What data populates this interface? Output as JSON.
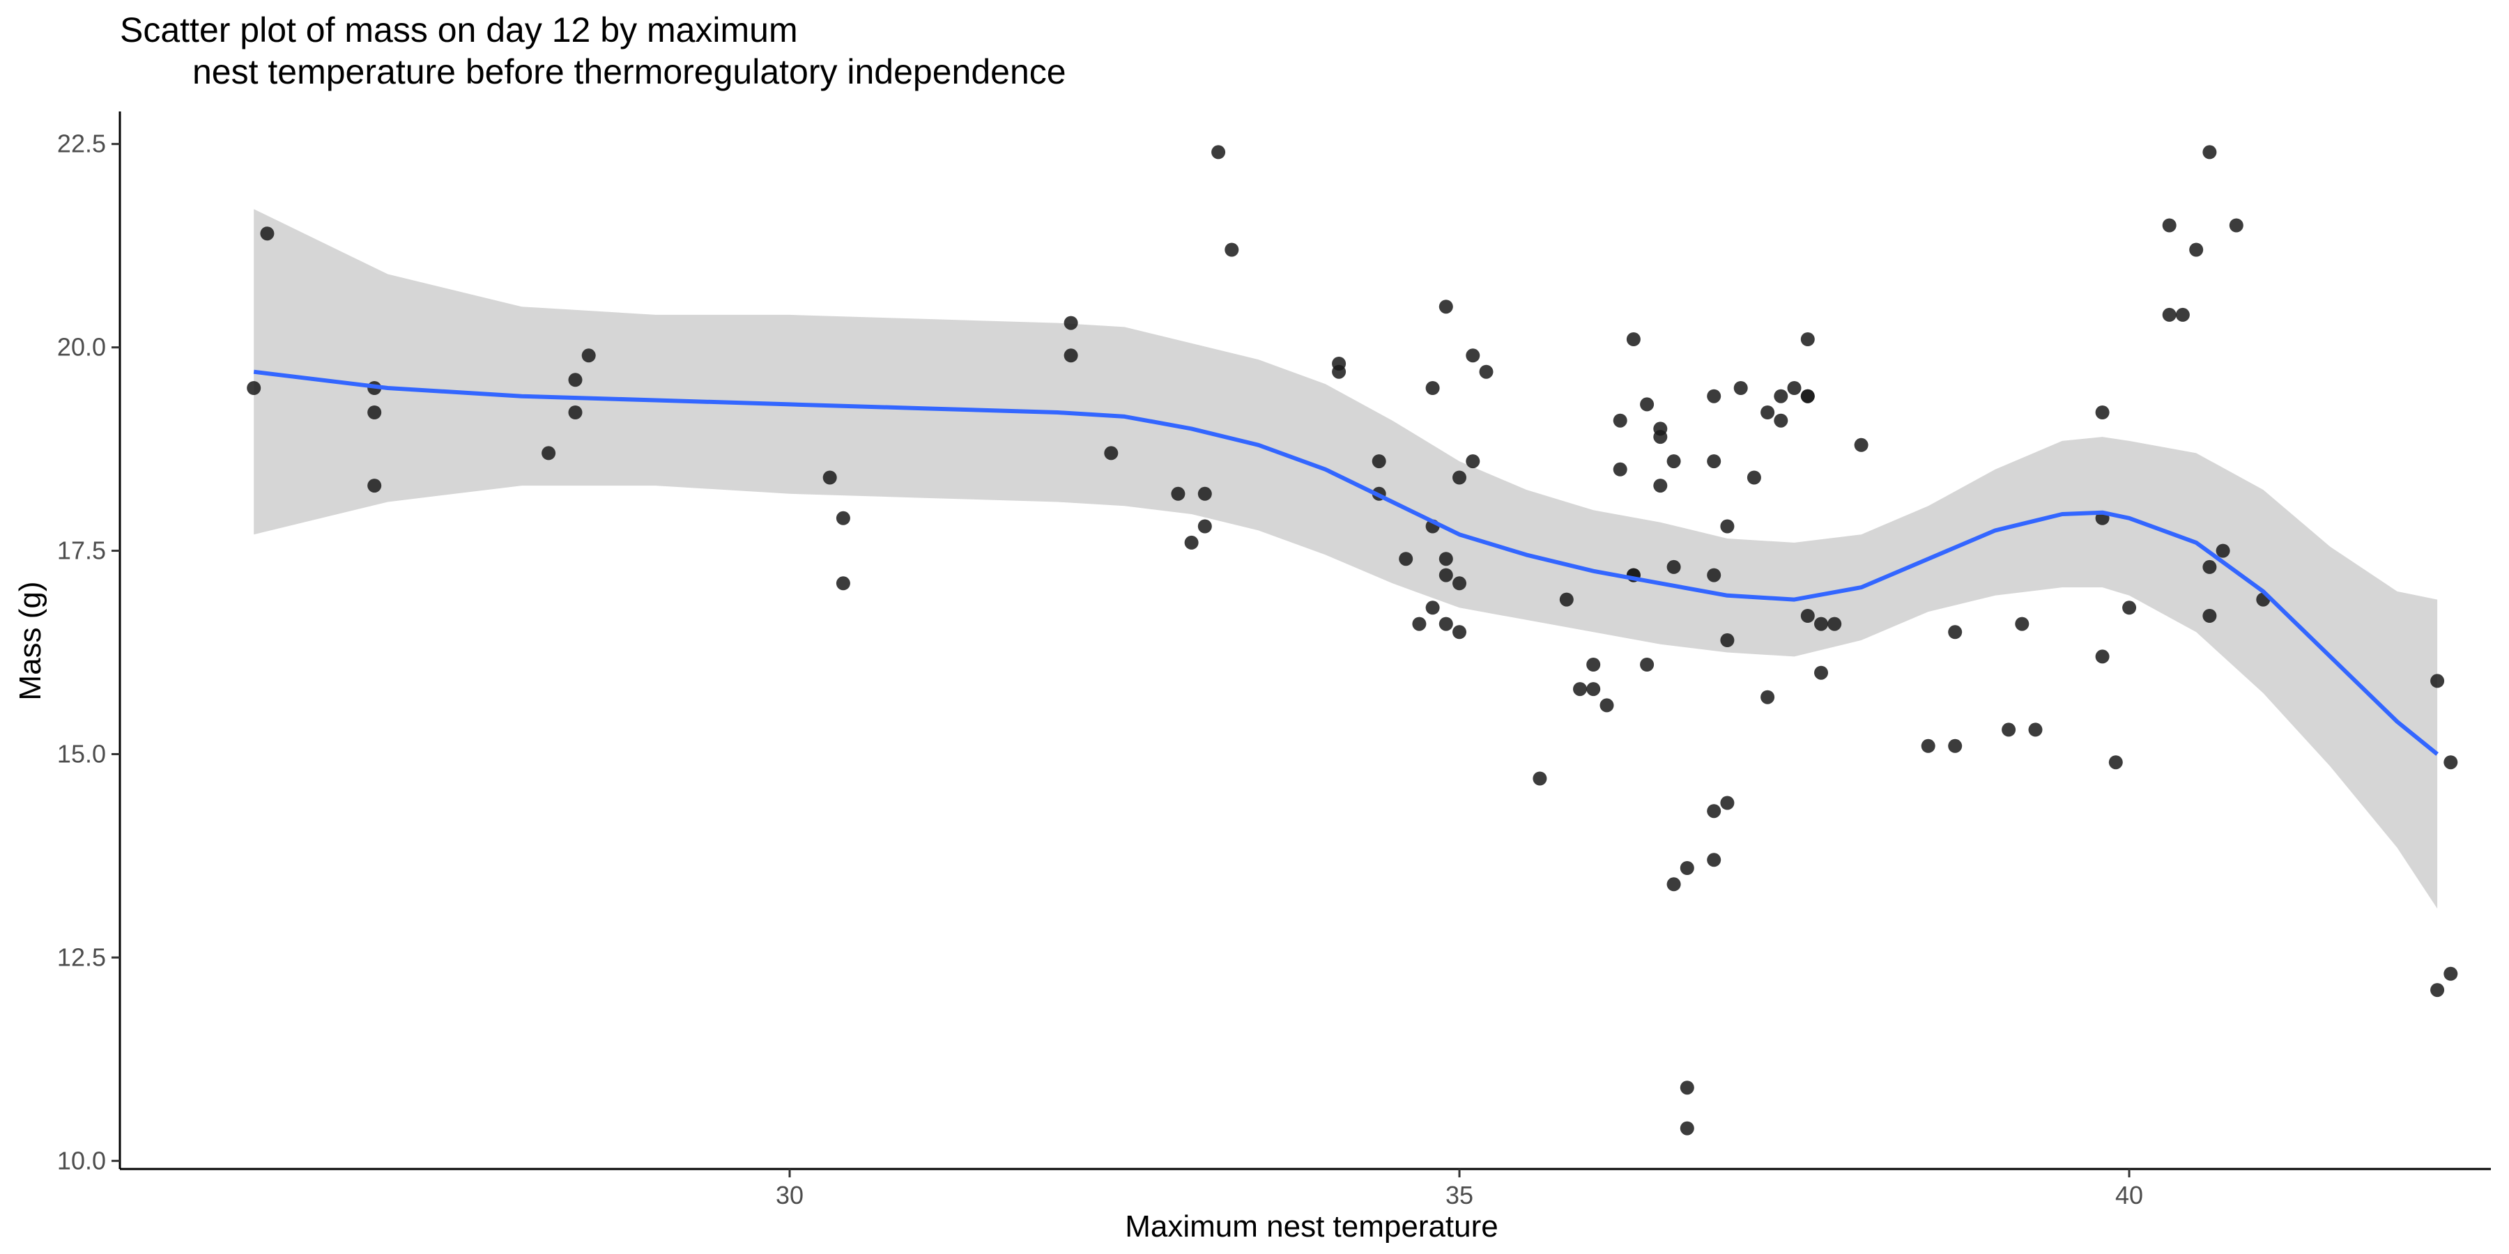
{
  "chart_data": {
    "type": "scatter",
    "title_line1": "Scatter plot of mass on day 12 by maximum",
    "title_line2": "nest temperature before thermoregulatory independence",
    "xlabel": "Maximum nest temperature",
    "ylabel": "Mass (g)",
    "xlim": [
      25.0,
      42.7
    ],
    "ylim": [
      9.9,
      22.9
    ],
    "x_ticks": [
      30,
      35,
      40
    ],
    "y_ticks": [
      10.0,
      12.5,
      15.0,
      17.5,
      20.0,
      22.5
    ],
    "x_tick_labels": [
      "30",
      "35",
      "40"
    ],
    "y_tick_labels": [
      "10.0",
      "12.5",
      "15.0",
      "17.5",
      "20.0",
      "22.5"
    ],
    "grid": false,
    "legend": "none",
    "colors": {
      "points": "#1a1a1a",
      "smooth_line": "#3366ff",
      "confidence_band": "#d6d6d6",
      "axis": "#000000"
    },
    "points": [
      [
        26.1,
        21.4
      ],
      [
        26.0,
        19.5
      ],
      [
        26.9,
        19.5
      ],
      [
        26.9,
        19.2
      ],
      [
        26.9,
        18.3
      ],
      [
        28.2,
        18.7
      ],
      [
        28.4,
        19.2
      ],
      [
        28.4,
        19.6
      ],
      [
        28.5,
        19.9
      ],
      [
        30.3,
        18.4
      ],
      [
        30.4,
        17.9
      ],
      [
        30.4,
        17.1
      ],
      [
        32.1,
        19.9
      ],
      [
        32.1,
        20.3
      ],
      [
        32.4,
        18.7
      ],
      [
        32.9,
        18.2
      ],
      [
        33.1,
        18.2
      ],
      [
        33.0,
        17.6
      ],
      [
        33.1,
        17.8
      ],
      [
        33.2,
        22.4
      ],
      [
        33.3,
        21.2
      ],
      [
        34.1,
        19.7
      ],
      [
        34.1,
        19.8
      ],
      [
        34.4,
        18.6
      ],
      [
        34.4,
        18.2
      ],
      [
        34.6,
        17.4
      ],
      [
        34.8,
        17.8
      ],
      [
        34.7,
        16.6
      ],
      [
        34.8,
        16.8
      ],
      [
        34.8,
        19.5
      ],
      [
        34.9,
        17.4
      ],
      [
        34.9,
        17.2
      ],
      [
        34.9,
        16.6
      ],
      [
        35.0,
        16.5
      ],
      [
        35.0,
        17.1
      ],
      [
        35.0,
        18.4
      ],
      [
        34.9,
        20.5
      ],
      [
        35.1,
        19.9
      ],
      [
        35.2,
        19.7
      ],
      [
        35.1,
        18.6
      ],
      [
        35.6,
        14.7
      ],
      [
        35.8,
        16.9
      ],
      [
        35.9,
        15.8
      ],
      [
        36.0,
        15.8
      ],
      [
        36.0,
        16.1
      ],
      [
        36.1,
        15.6
      ],
      [
        36.2,
        18.5
      ],
      [
        36.2,
        19.1
      ],
      [
        36.3,
        17.2
      ],
      [
        36.3,
        17.2
      ],
      [
        36.3,
        20.1
      ],
      [
        36.4,
        16.1
      ],
      [
        36.4,
        19.3
      ],
      [
        36.5,
        18.3
      ],
      [
        36.5,
        18.9
      ],
      [
        36.5,
        19.0
      ],
      [
        36.6,
        17.3
      ],
      [
        36.6,
        18.6
      ],
      [
        36.6,
        13.4
      ],
      [
        36.7,
        13.6
      ],
      [
        36.7,
        10.4
      ],
      [
        36.7,
        10.9
      ],
      [
        36.9,
        13.7
      ],
      [
        36.9,
        14.3
      ],
      [
        36.9,
        17.2
      ],
      [
        36.9,
        18.6
      ],
      [
        36.9,
        19.4
      ],
      [
        37.0,
        14.4
      ],
      [
        37.0,
        16.4
      ],
      [
        37.0,
        17.8
      ],
      [
        37.1,
        19.5
      ],
      [
        37.2,
        18.4
      ],
      [
        37.3,
        15.7
      ],
      [
        37.3,
        19.2
      ],
      [
        37.4,
        19.4
      ],
      [
        37.4,
        19.1
      ],
      [
        37.5,
        19.5
      ],
      [
        37.6,
        20.1
      ],
      [
        37.6,
        19.4
      ],
      [
        37.6,
        19.4
      ],
      [
        37.6,
        16.7
      ],
      [
        37.7,
        16.6
      ],
      [
        37.8,
        16.6
      ],
      [
        37.7,
        16.0
      ],
      [
        38.0,
        18.8
      ],
      [
        38.5,
        15.1
      ],
      [
        38.7,
        15.1
      ],
      [
        38.7,
        16.5
      ],
      [
        39.1,
        15.3
      ],
      [
        39.2,
        16.6
      ],
      [
        39.3,
        15.3
      ],
      [
        39.8,
        19.2
      ],
      [
        39.8,
        17.9
      ],
      [
        39.8,
        16.2
      ],
      [
        39.9,
        14.9
      ],
      [
        40.0,
        16.8
      ],
      [
        40.3,
        21.5
      ],
      [
        40.3,
        20.4
      ],
      [
        40.4,
        20.4
      ],
      [
        40.5,
        21.2
      ],
      [
        40.6,
        22.4
      ],
      [
        40.6,
        17.3
      ],
      [
        40.6,
        16.7
      ],
      [
        40.7,
        17.5
      ],
      [
        40.8,
        21.5
      ],
      [
        41.0,
        16.9
      ],
      [
        42.3,
        15.9
      ],
      [
        42.4,
        14.9
      ],
      [
        42.3,
        12.1
      ],
      [
        42.4,
        12.3
      ]
    ],
    "smooth_x": [
      26.0,
      27.0,
      28.0,
      29.0,
      30.0,
      31.0,
      32.0,
      32.5,
      33.0,
      33.5,
      34.0,
      34.5,
      35.0,
      35.5,
      36.0,
      36.5,
      37.0,
      37.5,
      38.0,
      38.5,
      39.0,
      39.5,
      39.8,
      40.0,
      40.5,
      41.0,
      41.5,
      42.0,
      42.3
    ],
    "smooth_y": [
      19.7,
      19.5,
      19.4,
      19.35,
      19.3,
      19.25,
      19.2,
      19.15,
      19.0,
      18.8,
      18.5,
      18.1,
      17.7,
      17.45,
      17.25,
      17.1,
      16.95,
      16.9,
      17.05,
      17.4,
      17.75,
      17.95,
      17.97,
      17.9,
      17.6,
      17.0,
      16.2,
      15.4,
      15.0
    ],
    "band_lower": [
      17.7,
      18.1,
      18.3,
      18.3,
      18.2,
      18.15,
      18.1,
      18.05,
      17.95,
      17.75,
      17.45,
      17.1,
      16.8,
      16.65,
      16.5,
      16.35,
      16.25,
      16.2,
      16.4,
      16.75,
      16.95,
      17.05,
      17.05,
      16.95,
      16.5,
      15.75,
      14.85,
      13.85,
      13.1
    ],
    "band_upper": [
      21.7,
      20.9,
      20.5,
      20.4,
      20.4,
      20.35,
      20.3,
      20.25,
      20.05,
      19.85,
      19.55,
      19.1,
      18.6,
      18.25,
      18.0,
      17.85,
      17.65,
      17.6,
      17.7,
      18.05,
      18.5,
      18.85,
      18.9,
      18.85,
      18.7,
      18.25,
      17.55,
      17.0,
      16.9
    ]
  }
}
